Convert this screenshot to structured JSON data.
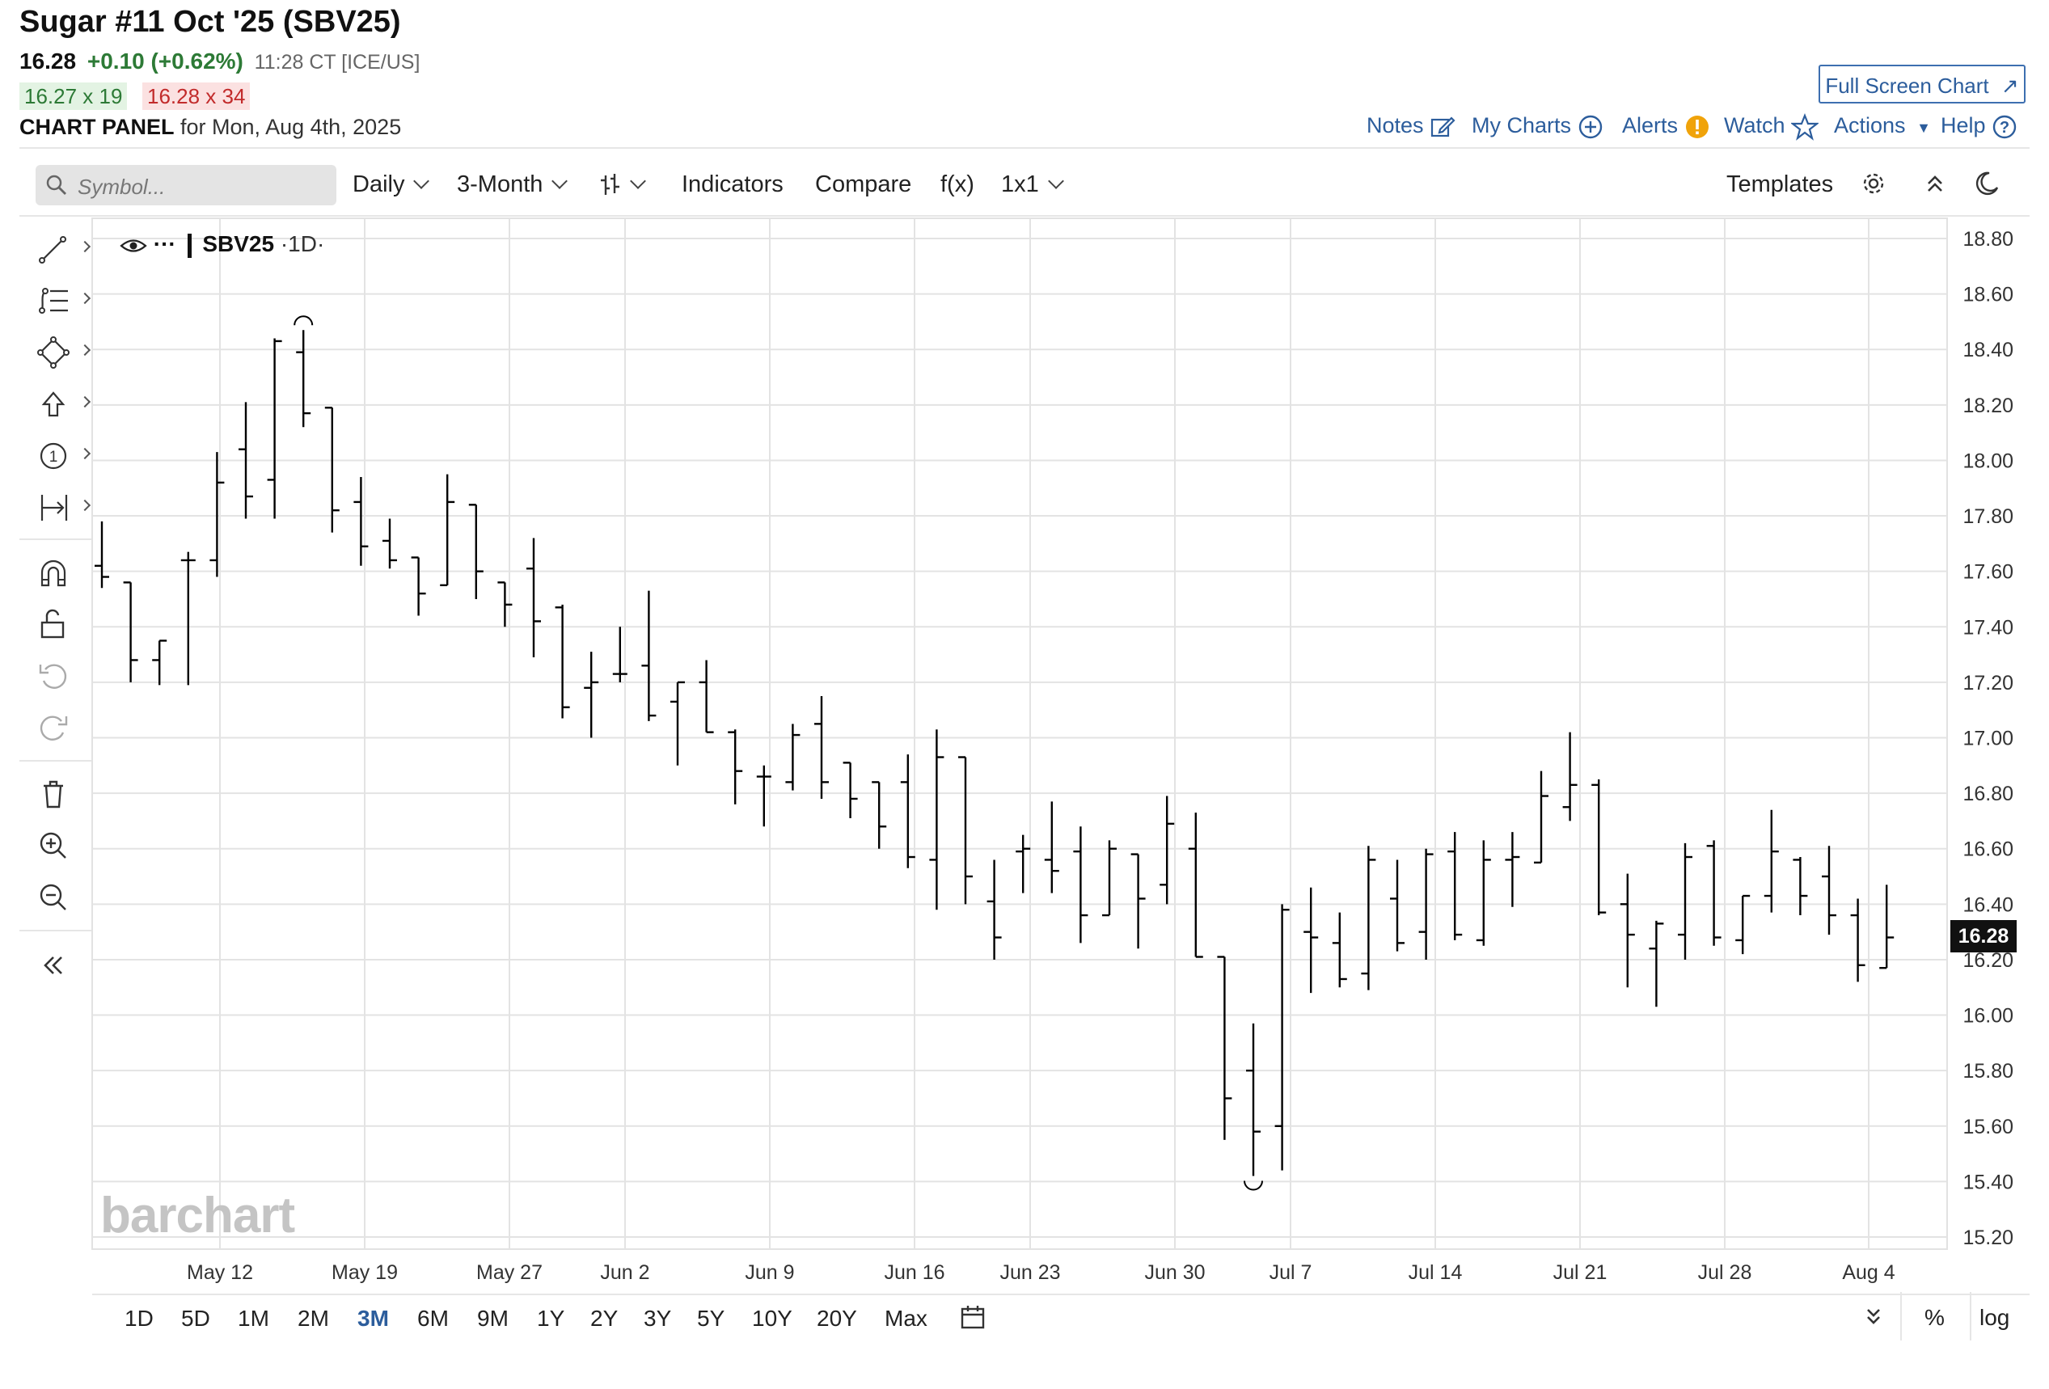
{
  "header": {
    "title": "Sugar #11 Oct '25 (SBV25)",
    "last": "16.28",
    "change": "+0.10 (+0.62%)",
    "timestamp": "11:28 CT [ICE/US]",
    "bid": "16.27 x 19",
    "ask": "16.28 x 34",
    "panel_label": "CHART PANEL",
    "panel_date": "for Mon, Aug 4th, 2025",
    "full_screen": "Full Screen Chart"
  },
  "links": {
    "notes": "Notes",
    "my_charts": "My Charts",
    "alerts": "Alerts",
    "watch": "Watch",
    "actions": "Actions",
    "help": "Help"
  },
  "toolbar": {
    "search_placeholder": "Symbol...",
    "interval": "Daily",
    "range": "3-Month",
    "indicators": "Indicators",
    "compare": "Compare",
    "fx": "f(x)",
    "layout": "1x1",
    "templates": "Templates"
  },
  "symbol_label": {
    "symbol": "SBV25",
    "interval": "·1D·"
  },
  "current_price_tag": "16.28",
  "logo": "barchart",
  "periods": [
    "1D",
    "5D",
    "1M",
    "2M",
    "3M",
    "6M",
    "9M",
    "1Y",
    "2Y",
    "3Y",
    "5Y",
    "10Y",
    "20Y",
    "Max"
  ],
  "active_period": "3M",
  "bottom_right": {
    "percent": "%",
    "log": "log"
  },
  "colors": {
    "up": "#2d7a36",
    "down": "#c22b2b",
    "link": "#2c5d9c",
    "bars": "#000000"
  },
  "chart_data": {
    "type": "ohlc",
    "ylim": [
      15.2,
      18.8
    ],
    "yticks": [
      "18.80",
      "18.60",
      "18.40",
      "18.20",
      "18.00",
      "17.80",
      "17.60",
      "17.40",
      "17.20",
      "17.00",
      "16.80",
      "16.60",
      "16.40",
      "16.20",
      "16.00",
      "15.80",
      "15.60",
      "15.40",
      "15.20"
    ],
    "xticks": [
      "May 12",
      "May 19",
      "May 27",
      "Jun 2",
      "Jun 9",
      "Jun 16",
      "Jun 23",
      "Jun 30",
      "Jul 7",
      "Jul 14",
      "Jul 21",
      "Jul 28",
      "Aug 4"
    ],
    "grid": true,
    "bars": [
      {
        "o": 17.62,
        "h": 17.78,
        "l": 17.54,
        "c": 17.58
      },
      {
        "o": 17.56,
        "h": 17.56,
        "l": 17.2,
        "c": 17.28
      },
      {
        "o": 17.28,
        "h": 17.35,
        "l": 17.19,
        "c": 17.35
      },
      {
        "o": 17.64,
        "h": 17.67,
        "l": 17.19,
        "c": 17.64
      },
      {
        "o": 17.64,
        "h": 18.03,
        "l": 17.58,
        "c": 17.92
      },
      {
        "o": 18.04,
        "h": 18.21,
        "l": 17.79,
        "c": 17.87
      },
      {
        "o": 17.93,
        "h": 18.44,
        "l": 17.79,
        "c": 18.43
      },
      {
        "o": 18.39,
        "h": 18.47,
        "l": 18.12,
        "c": 18.17
      },
      {
        "o": 18.19,
        "h": 18.19,
        "l": 17.74,
        "c": 17.82
      },
      {
        "o": 17.85,
        "h": 17.94,
        "l": 17.62,
        "c": 17.69
      },
      {
        "o": 17.71,
        "h": 17.79,
        "l": 17.61,
        "c": 17.64
      },
      {
        "o": 17.65,
        "h": 17.65,
        "l": 17.44,
        "c": 17.52
      },
      {
        "o": 17.55,
        "h": 17.95,
        "l": 17.55,
        "c": 17.85
      },
      {
        "o": 17.84,
        "h": 17.84,
        "l": 17.5,
        "c": 17.6
      },
      {
        "o": 17.56,
        "h": 17.56,
        "l": 17.4,
        "c": 17.48
      },
      {
        "o": 17.61,
        "h": 17.72,
        "l": 17.29,
        "c": 17.42
      },
      {
        "o": 17.47,
        "h": 17.48,
        "l": 17.07,
        "c": 17.11
      },
      {
        "o": 17.18,
        "h": 17.31,
        "l": 17.0,
        "c": 17.2
      },
      {
        "o": 17.23,
        "h": 17.4,
        "l": 17.2,
        "c": 17.23
      },
      {
        "o": 17.26,
        "h": 17.53,
        "l": 17.06,
        "c": 17.08
      },
      {
        "o": 17.13,
        "h": 17.2,
        "l": 16.9,
        "c": 17.2
      },
      {
        "o": 17.2,
        "h": 17.28,
        "l": 17.02,
        "c": 17.02
      },
      {
        "o": 17.02,
        "h": 17.03,
        "l": 16.76,
        "c": 16.88
      },
      {
        "o": 16.86,
        "h": 16.9,
        "l": 16.68,
        "c": 16.86
      },
      {
        "o": 16.84,
        "h": 17.05,
        "l": 16.81,
        "c": 17.01
      },
      {
        "o": 17.05,
        "h": 17.15,
        "l": 16.78,
        "c": 16.84
      },
      {
        "o": 16.91,
        "h": 16.91,
        "l": 16.71,
        "c": 16.78
      },
      {
        "o": 16.84,
        "h": 16.84,
        "l": 16.6,
        "c": 16.68
      },
      {
        "o": 16.84,
        "h": 16.94,
        "l": 16.53,
        "c": 16.57
      },
      {
        "o": 16.56,
        "h": 17.03,
        "l": 16.38,
        "c": 16.93
      },
      {
        "o": 16.93,
        "h": 16.93,
        "l": 16.4,
        "c": 16.5
      },
      {
        "o": 16.41,
        "h": 16.56,
        "l": 16.2,
        "c": 16.28
      },
      {
        "o": 16.59,
        "h": 16.65,
        "l": 16.44,
        "c": 16.6
      },
      {
        "o": 16.56,
        "h": 16.77,
        "l": 16.44,
        "c": 16.52
      },
      {
        "o": 16.59,
        "h": 16.68,
        "l": 16.26,
        "c": 16.36
      },
      {
        "o": 16.36,
        "h": 16.63,
        "l": 16.36,
        "c": 16.6
      },
      {
        "o": 16.58,
        "h": 16.58,
        "l": 16.24,
        "c": 16.42
      },
      {
        "o": 16.47,
        "h": 16.79,
        "l": 16.4,
        "c": 16.69
      },
      {
        "o": 16.6,
        "h": 16.73,
        "l": 16.21,
        "c": 16.21
      },
      {
        "o": 16.21,
        "h": 16.21,
        "l": 15.55,
        "c": 15.7
      },
      {
        "o": 15.8,
        "h": 15.97,
        "l": 15.42,
        "c": 15.58
      },
      {
        "o": 15.6,
        "h": 16.4,
        "l": 15.44,
        "c": 16.38
      },
      {
        "o": 16.3,
        "h": 16.46,
        "l": 16.08,
        "c": 16.28
      },
      {
        "o": 16.26,
        "h": 16.37,
        "l": 16.1,
        "c": 16.13
      },
      {
        "o": 16.15,
        "h": 16.61,
        "l": 16.09,
        "c": 16.56
      },
      {
        "o": 16.42,
        "h": 16.56,
        "l": 16.23,
        "c": 16.26
      },
      {
        "o": 16.3,
        "h": 16.6,
        "l": 16.2,
        "c": 16.58
      },
      {
        "o": 16.59,
        "h": 16.66,
        "l": 16.27,
        "c": 16.29
      },
      {
        "o": 16.27,
        "h": 16.63,
        "l": 16.25,
        "c": 16.56
      },
      {
        "o": 16.56,
        "h": 16.66,
        "l": 16.39,
        "c": 16.57
      },
      {
        "o": 16.55,
        "h": 16.88,
        "l": 16.55,
        "c": 16.79
      },
      {
        "o": 16.75,
        "h": 17.02,
        "l": 16.7,
        "c": 16.83
      },
      {
        "o": 16.83,
        "h": 16.85,
        "l": 16.36,
        "c": 16.37
      },
      {
        "o": 16.4,
        "h": 16.51,
        "l": 16.1,
        "c": 16.29
      },
      {
        "o": 16.24,
        "h": 16.34,
        "l": 16.03,
        "c": 16.33
      },
      {
        "o": 16.29,
        "h": 16.62,
        "l": 16.2,
        "c": 16.57
      },
      {
        "o": 16.61,
        "h": 16.63,
        "l": 16.25,
        "c": 16.28
      },
      {
        "o": 16.27,
        "h": 16.43,
        "l": 16.22,
        "c": 16.43
      },
      {
        "o": 16.43,
        "h": 16.74,
        "l": 16.37,
        "c": 16.59
      },
      {
        "o": 16.56,
        "h": 16.57,
        "l": 16.36,
        "c": 16.43
      },
      {
        "o": 16.5,
        "h": 16.61,
        "l": 16.29,
        "c": 16.36
      },
      {
        "o": 16.36,
        "h": 16.42,
        "l": 16.12,
        "c": 16.18
      },
      {
        "o": 16.17,
        "h": 16.47,
        "l": 16.17,
        "c": 16.28
      }
    ]
  }
}
